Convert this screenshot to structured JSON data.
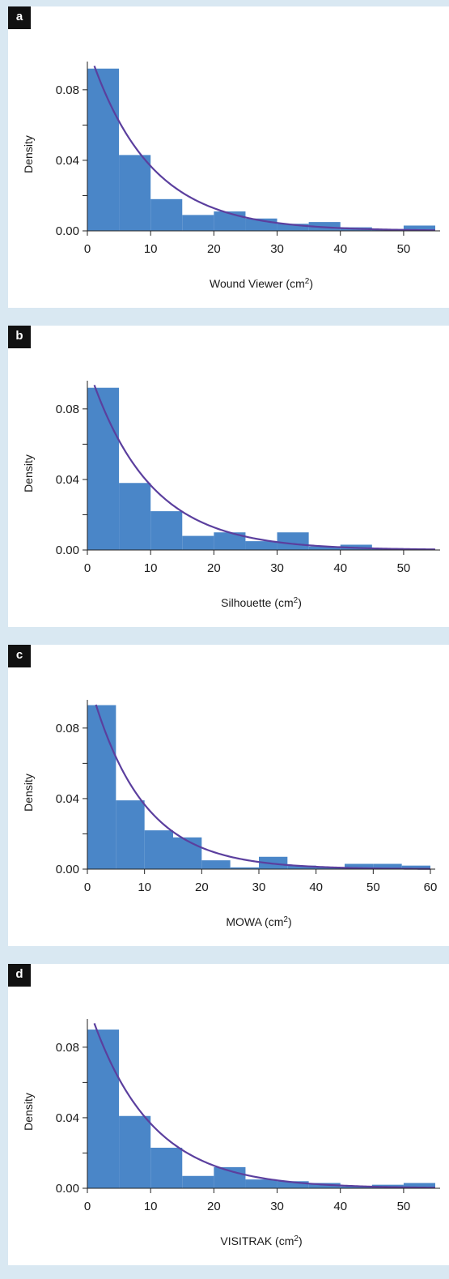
{
  "colors": {
    "bar": "#4a86c8",
    "curve": "#5b3f9e",
    "axis": "#222222",
    "panel_bg": "#ffffff",
    "page_bg": "#d9e8f2"
  },
  "chart_data": [
    {
      "panel": "a",
      "type": "bar",
      "xlabel": "Wound Viewer (cm",
      "xlabel_sup": "2",
      "xlabel_end": ")",
      "ylabel": "Density",
      "xlim": [
        0,
        55
      ],
      "ylim": [
        0,
        0.096
      ],
      "x_ticks": [
        0,
        10,
        20,
        30,
        40,
        50
      ],
      "y_ticks": [
        0.0,
        0.04,
        0.08
      ],
      "y_tick_labels": [
        "0.00",
        "0.04",
        "0.08"
      ],
      "bin_width": 5,
      "bins": [
        0,
        5,
        10,
        15,
        20,
        25,
        30,
        35,
        40,
        45,
        50
      ],
      "values": [
        0.092,
        0.043,
        0.018,
        0.009,
        0.011,
        0.007,
        0.004,
        0.005,
        0.002,
        0.001,
        0.003
      ],
      "fit": {
        "type": "exponential density",
        "rate": 0.105
      }
    },
    {
      "panel": "b",
      "type": "bar",
      "xlabel": "Silhouette (cm",
      "xlabel_sup": "2",
      "xlabel_end": ")",
      "ylabel": "Density",
      "xlim": [
        0,
        55
      ],
      "ylim": [
        0,
        0.096
      ],
      "x_ticks": [
        0,
        10,
        20,
        30,
        40,
        50
      ],
      "y_ticks": [
        0.0,
        0.04,
        0.08
      ],
      "y_tick_labels": [
        "0.00",
        "0.04",
        "0.08"
      ],
      "bin_width": 5,
      "bins": [
        0,
        5,
        10,
        15,
        20,
        25,
        30,
        35,
        40,
        45,
        50
      ],
      "values": [
        0.092,
        0.038,
        0.022,
        0.008,
        0.01,
        0.005,
        0.01,
        0.002,
        0.003,
        0.001,
        0.0
      ],
      "fit": {
        "type": "exponential density",
        "rate": 0.105
      }
    },
    {
      "panel": "c",
      "type": "bar",
      "xlabel": "MOWA (cm",
      "xlabel_sup": "2",
      "xlabel_end": ")",
      "ylabel": "Density",
      "xlim": [
        0,
        60
      ],
      "ylim": [
        0,
        0.096
      ],
      "x_ticks": [
        0,
        10,
        20,
        30,
        40,
        50,
        60
      ],
      "y_ticks": [
        0.0,
        0.04,
        0.08
      ],
      "y_tick_labels": [
        "0.00",
        "0.04",
        "0.08"
      ],
      "bin_width": 5,
      "bins": [
        0,
        5,
        10,
        15,
        20,
        25,
        30,
        35,
        40,
        45,
        50,
        55
      ],
      "values": [
        0.093,
        0.039,
        0.022,
        0.018,
        0.005,
        0.001,
        0.007,
        0.002,
        0.001,
        0.003,
        0.003,
        0.002
      ],
      "fit": {
        "type": "exponential density",
        "rate": 0.11
      }
    },
    {
      "panel": "d",
      "type": "bar",
      "xlabel": "VISITRAK (cm",
      "xlabel_sup": "2",
      "xlabel_end": ")",
      "ylabel": "Density",
      "xlim": [
        0,
        55
      ],
      "ylim": [
        0,
        0.096
      ],
      "x_ticks": [
        0,
        10,
        20,
        30,
        40,
        50
      ],
      "y_ticks": [
        0.0,
        0.04,
        0.08
      ],
      "y_tick_labels": [
        "0.00",
        "0.04",
        "0.08"
      ],
      "bin_width": 5,
      "bins": [
        0,
        5,
        10,
        15,
        20,
        25,
        30,
        35,
        40,
        45,
        50
      ],
      "values": [
        0.09,
        0.041,
        0.023,
        0.007,
        0.012,
        0.005,
        0.004,
        0.003,
        0.001,
        0.002,
        0.003
      ],
      "fit": {
        "type": "exponential density",
        "rate": 0.105
      }
    }
  ]
}
